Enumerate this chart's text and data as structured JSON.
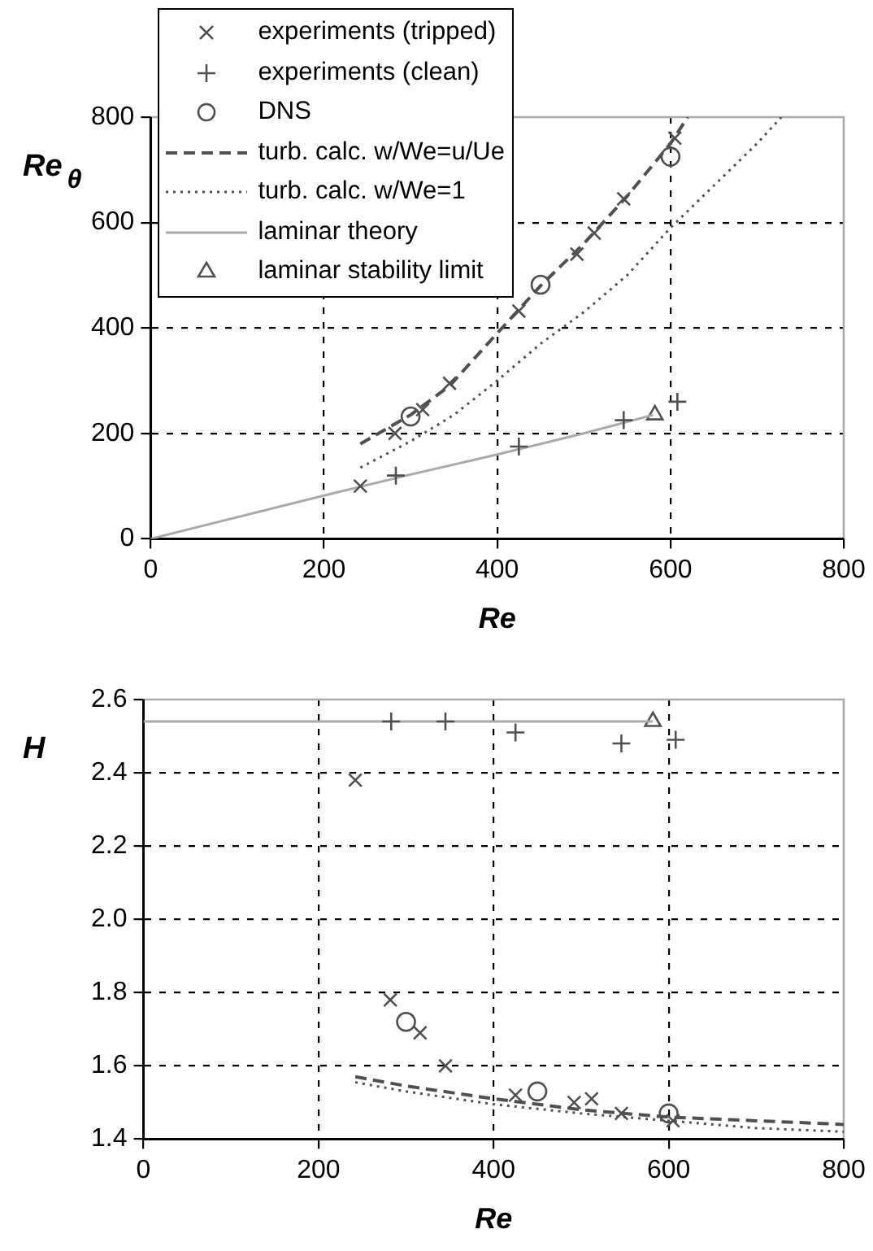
{
  "chart_data": [
    {
      "type": "scatter",
      "xlabel": "Re",
      "ylabel": "Re$_{θ}$",
      "xlim": [
        0,
        800
      ],
      "xticks": [
        0,
        200,
        400,
        600,
        800
      ],
      "ylim": [
        0,
        800
      ],
      "yticks": [
        0,
        200,
        400,
        600,
        800
      ],
      "grid": true,
      "legend": "top left",
      "series": [
        {
          "name": "experiments (tripped)",
          "type": "scatter",
          "marker": "x",
          "color": "#505050",
          "x": [
            242,
            282,
            314,
            345,
            425,
            492,
            512,
            546,
            605
          ],
          "values": [
            100,
            200,
            245,
            295,
            432,
            540,
            580,
            645,
            760
          ]
        },
        {
          "name": "experiments (clean)",
          "type": "scatter",
          "marker": "cross",
          "color": "#505050",
          "x": [
            283,
            425,
            546,
            608
          ],
          "values": [
            120,
            175,
            225,
            260
          ]
        },
        {
          "name": "DNS",
          "type": "scatter",
          "marker": "circle",
          "color": "#505050",
          "x": [
            300,
            450,
            600
          ],
          "values": [
            232,
            482,
            725
          ]
        },
        {
          "name": "turb. calc. w/We=u/Ue",
          "type": "line",
          "line_style": "dashed",
          "color": "#505050",
          "x": [
            242,
            300,
            345,
            400,
            450,
            500,
            550,
            600,
            620
          ],
          "values": [
            180,
            235,
            290,
            390,
            480,
            560,
            650,
            750,
            800
          ]
        },
        {
          "name": "turb. calc. w/We=1",
          "type": "line",
          "line_style": "dotted",
          "color": "#505050",
          "x": [
            242,
            300,
            350,
            400,
            450,
            500,
            550,
            600,
            650,
            700,
            728
          ],
          "values": [
            135,
            185,
            235,
            300,
            370,
            430,
            500,
            590,
            670,
            750,
            800
          ]
        },
        {
          "name": "laminar theory",
          "type": "line",
          "line_style": "solid",
          "color": "#aaaaaa",
          "x": [
            0,
            200,
            300,
            400,
            500,
            580
          ],
          "values": [
            0,
            82,
            122,
            160,
            200,
            235
          ]
        },
        {
          "name": "laminar stability limit",
          "type": "scatter",
          "marker": "triangle",
          "color": "#505050",
          "x": [
            582
          ],
          "values": [
            235
          ]
        }
      ]
    },
    {
      "type": "scatter",
      "xlabel": "Re",
      "ylabel": "H",
      "xlim": [
        0,
        800
      ],
      "xticks": [
        0,
        200,
        400,
        600,
        800
      ],
      "ylim": [
        1.4,
        2.6
      ],
      "yticks": [
        1.4,
        1.6,
        1.8,
        {
          "value": 2,
          "label": "2.0"
        },
        2.2,
        2.4,
        2.6
      ],
      "grid": true,
      "series": [
        {
          "type": "scatter",
          "marker": "x",
          "color": "#505050",
          "x": [
            242,
            282,
            316,
            345,
            425,
            492,
            512,
            546,
            605
          ],
          "values": [
            2.38,
            1.78,
            1.69,
            1.6,
            1.52,
            1.5,
            1.51,
            1.47,
            1.45
          ]
        },
        {
          "type": "scatter",
          "marker": "cross",
          "color": "#505050",
          "x": [
            283,
            345,
            425,
            546,
            608
          ],
          "values": [
            2.54,
            2.54,
            2.51,
            2.48,
            2.49
          ]
        },
        {
          "type": "scatter",
          "marker": "circle",
          "color": "#505050",
          "x": [
            300,
            450,
            600
          ],
          "values": [
            1.72,
            1.53,
            1.47
          ]
        },
        {
          "type": "line",
          "line_style": "dashed",
          "color": "#505050",
          "x": [
            242,
            300,
            400,
            500,
            600,
            700,
            800
          ],
          "values": [
            1.57,
            1.545,
            1.51,
            1.48,
            1.46,
            1.45,
            1.44
          ]
        },
        {
          "type": "line",
          "line_style": "dotted",
          "color": "#505050",
          "x": [
            242,
            300,
            400,
            500,
            600,
            700,
            800
          ],
          "values": [
            1.555,
            1.53,
            1.495,
            1.47,
            1.45,
            1.43,
            1.42
          ]
        },
        {
          "type": "line",
          "line_style": "solid",
          "color": "#aaaaaa",
          "x": [
            0,
            582
          ],
          "values": [
            2.54,
            2.54
          ]
        },
        {
          "type": "scatter",
          "marker": "triangle",
          "color": "#505050",
          "x": [
            582
          ],
          "values": [
            2.54
          ]
        }
      ]
    }
  ]
}
